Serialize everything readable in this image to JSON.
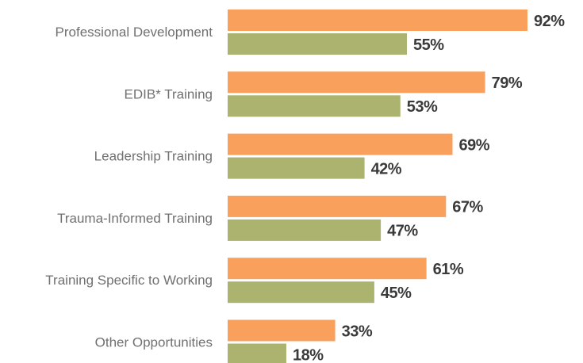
{
  "chart_data": {
    "type": "bar",
    "orientation": "horizontal",
    "categories": [
      "Professional Development",
      "EDIB* Training",
      "Leadership Training",
      "Trauma-Informed Training",
      "Training Specific to Working",
      "Other Opportunities"
    ],
    "series": [
      {
        "color": "#f9a05c",
        "values": [
          92,
          79,
          69,
          67,
          61,
          33
        ],
        "value_labels": [
          "92%",
          "79%",
          "69%",
          "67%",
          "61%",
          "33%"
        ]
      },
      {
        "color": "#abb36f",
        "values": [
          55,
          53,
          42,
          47,
          45,
          18
        ],
        "value_labels": [
          "55%",
          "53%",
          "42%",
          "47%",
          "45%",
          "18%"
        ]
      }
    ]
  }
}
